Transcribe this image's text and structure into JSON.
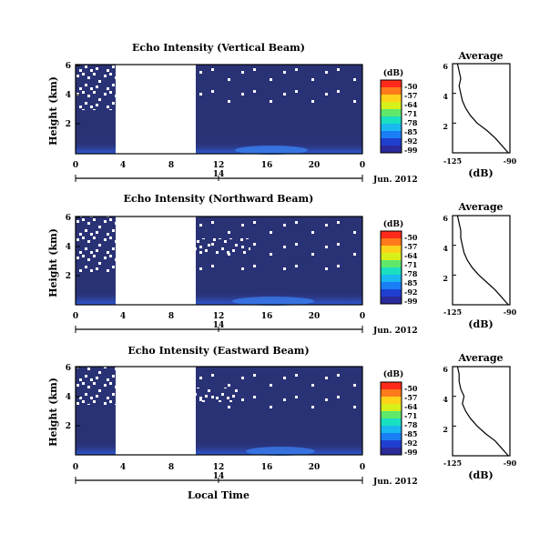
{
  "colors": {
    "background_echo": "#2a3276",
    "missing": "#ffffff",
    "near_ground": "#2f5cd8",
    "strong": "#3fa7ff",
    "colorbar": [
      "#ff2a1a",
      "#ff7a1a",
      "#ffd21a",
      "#d8f01a",
      "#5fe86a",
      "#19e0c0",
      "#19b8f0",
      "#1a7ef5",
      "#1f3fd0",
      "#2a2a9a"
    ]
  },
  "chart_data": [
    {
      "type": "heatmap",
      "title": "Echo Intensity (Vertical Beam)",
      "ylabel": "Height (km)",
      "xlim": [
        0,
        24
      ],
      "ylim": [
        0,
        6
      ],
      "x_ticks": [
        "0",
        "4",
        "8",
        "12",
        "16",
        "20",
        "0"
      ],
      "y_ticks": [
        "2",
        "4",
        "6"
      ],
      "date_label": "14",
      "date_suffix": "Jun. 2012",
      "missing_data_interval_h": [
        3.3,
        10.0
      ],
      "colorbar": {
        "label": "(dB)",
        "ticks": [
          "-50",
          "-57",
          "-64",
          "-71",
          "-78",
          "-85",
          "-92",
          "-99"
        ]
      },
      "profile": {
        "title": "Average",
        "xlabel": "(dB)",
        "xlim": [
          -125,
          -90
        ],
        "x_ticks": [
          "-125",
          "-90"
        ],
        "y_ticks": [
          "2",
          "4",
          "6"
        ],
        "height_km": [
          6.0,
          5.5,
          5.0,
          4.5,
          4.0,
          3.5,
          3.0,
          2.5,
          2.0,
          1.5,
          1.0,
          0.5,
          0.0
        ],
        "db": [
          -122,
          -121,
          -120,
          -121,
          -120,
          -119,
          -117,
          -114,
          -110,
          -104,
          -99,
          -95,
          -91
        ]
      }
    },
    {
      "type": "heatmap",
      "title": "Echo Intensity (Northward Beam)",
      "ylabel": "Height (km)",
      "xlim": [
        0,
        24
      ],
      "ylim": [
        0,
        6
      ],
      "x_ticks": [
        "0",
        "4",
        "8",
        "12",
        "16",
        "20",
        "0"
      ],
      "y_ticks": [
        "2",
        "4",
        "6"
      ],
      "date_label": "14",
      "date_suffix": "Jun. 2012",
      "missing_data_interval_h": [
        3.3,
        10.0
      ],
      "colorbar": {
        "label": "(dB)",
        "ticks": [
          "-50",
          "-57",
          "-64",
          "-71",
          "-78",
          "-85",
          "-92",
          "-99"
        ]
      },
      "profile": {
        "title": "Average",
        "xlabel": "(dB)",
        "xlim": [
          -125,
          -90
        ],
        "x_ticks": [
          "-125",
          "-90"
        ],
        "y_ticks": [
          "2",
          "4",
          "6"
        ],
        "height_km": [
          6.0,
          5.5,
          5.0,
          4.5,
          4.0,
          3.5,
          3.0,
          2.5,
          2.0,
          1.5,
          1.0,
          0.5,
          0.0
        ],
        "db": [
          -122,
          -121,
          -120,
          -120,
          -119,
          -118,
          -116,
          -113,
          -109,
          -104,
          -99,
          -95,
          -91
        ]
      }
    },
    {
      "type": "heatmap",
      "title": "Echo Intensity (Eastward Beam)",
      "ylabel": "Height (km)",
      "xlabel": "Local Time",
      "xlim": [
        0,
        24
      ],
      "ylim": [
        0,
        6
      ],
      "x_ticks": [
        "0",
        "4",
        "8",
        "12",
        "16",
        "20",
        "0"
      ],
      "y_ticks": [
        "2",
        "4",
        "6"
      ],
      "date_label": "14",
      "date_suffix": "Jun. 2012",
      "missing_data_interval_h": [
        3.3,
        10.0
      ],
      "colorbar": {
        "label": "(dB)",
        "ticks": [
          "-50",
          "-57",
          "-64",
          "-71",
          "-78",
          "-85",
          "-92",
          "-99"
        ]
      },
      "profile": {
        "title": "Average",
        "xlabel": "(dB)",
        "xlim": [
          -125,
          -90
        ],
        "x_ticks": [
          "-125",
          "-90"
        ],
        "y_ticks": [
          "2",
          "4",
          "6"
        ],
        "height_km": [
          6.0,
          5.5,
          5.0,
          4.5,
          4.0,
          3.5,
          3.0,
          2.5,
          2.0,
          1.5,
          1.0,
          0.5,
          0.0
        ],
        "db": [
          -122,
          -121,
          -121,
          -120,
          -118,
          -119,
          -117,
          -114,
          -110,
          -105,
          -99,
          -95,
          -91
        ]
      }
    }
  ]
}
